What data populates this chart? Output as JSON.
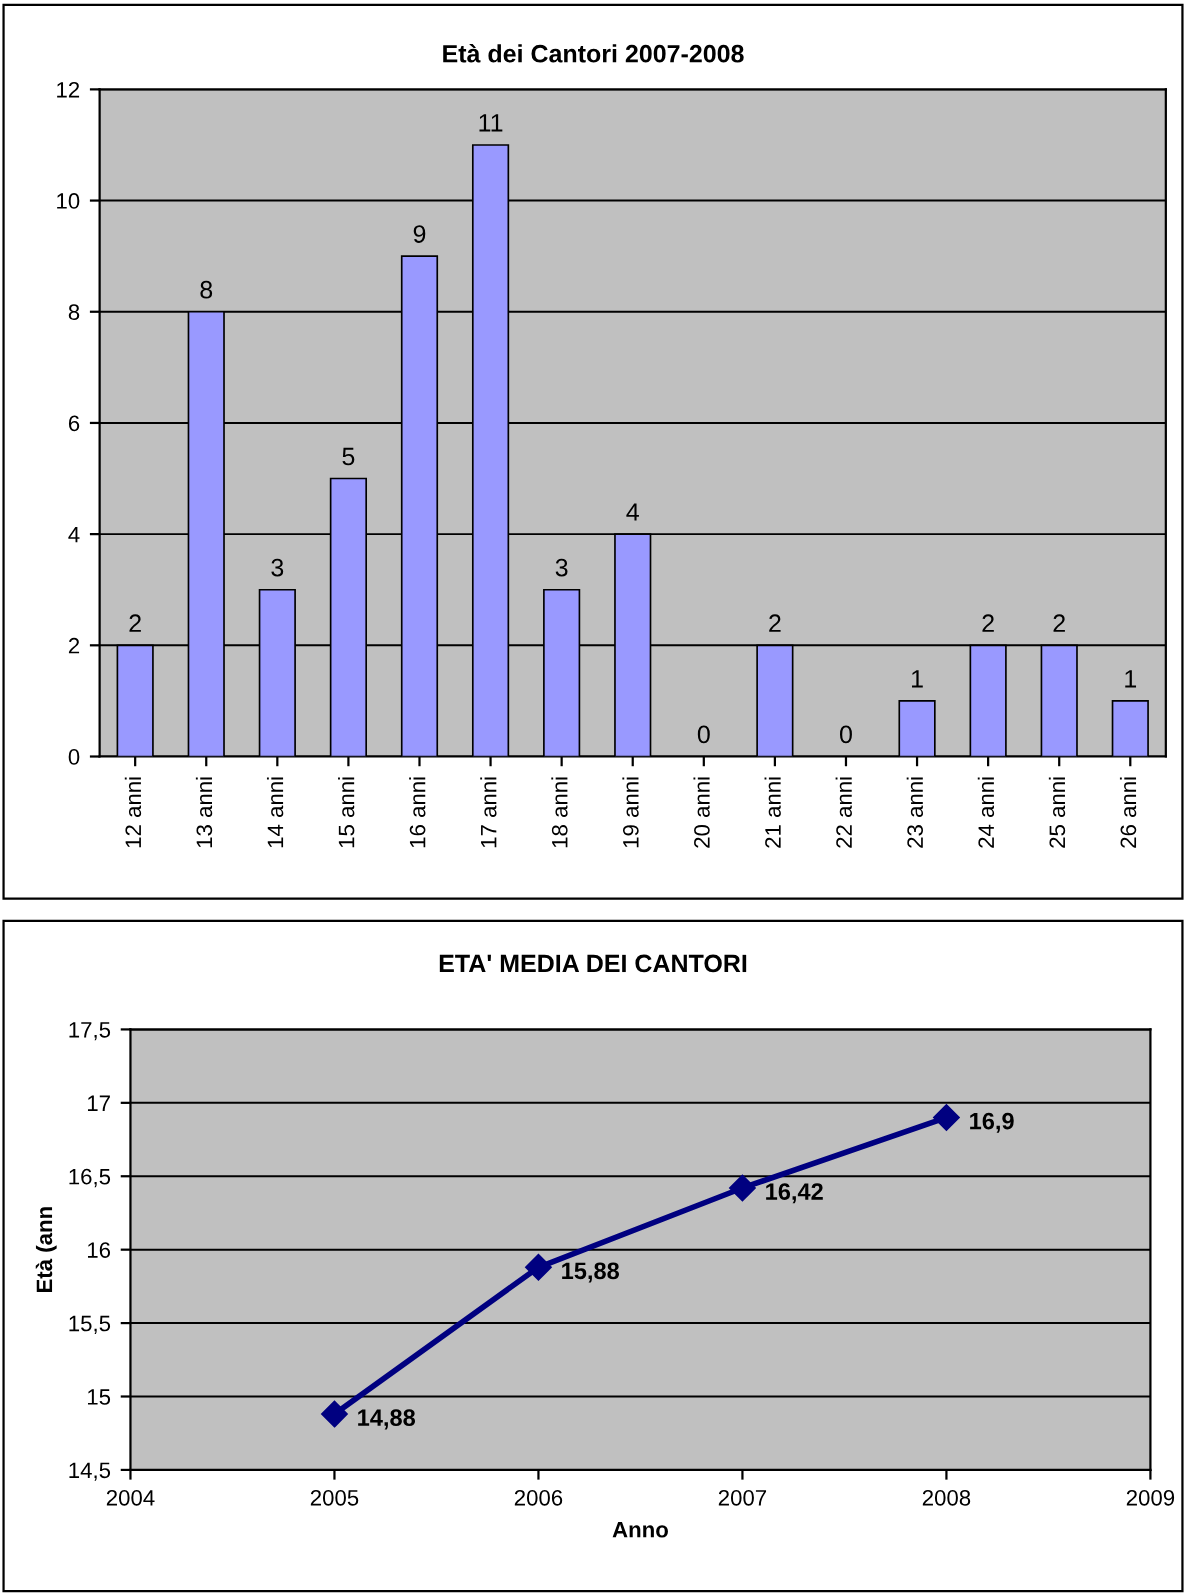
{
  "chart_data": [
    {
      "type": "bar",
      "title": "Età dei Cantori 2007-2008",
      "categories": [
        "12 anni",
        "13 anni",
        "14 anni",
        "15 anni",
        "16 anni",
        "17 anni",
        "18 anni",
        "19 anni",
        "20 anni",
        "21 anni",
        "22 anni",
        "23 anni",
        "24 anni",
        "25 anni",
        "26 anni"
      ],
      "values": [
        2,
        8,
        3,
        5,
        9,
        11,
        3,
        4,
        0,
        2,
        0,
        1,
        2,
        2,
        1
      ],
      "color": "#9999ff",
      "ylim": [
        0,
        12
      ],
      "yticks": [
        0,
        2,
        4,
        6,
        8,
        10,
        12
      ],
      "grid": "y",
      "data_labels": true
    },
    {
      "type": "line",
      "title": "ETA' MEDIA DEI CANTORI",
      "xlabel": "Anno",
      "ylabel": "Età (ann",
      "x": [
        2005,
        2006,
        2007,
        2008
      ],
      "values": [
        14.88,
        15.88,
        16.42,
        16.9
      ],
      "value_labels": [
        "14,88",
        "15,88",
        "16,42",
        "16,9"
      ],
      "color": "#000080",
      "marker": "diamond",
      "line_style": "solid",
      "xlim": [
        2004,
        2009
      ],
      "xticks": [
        2004,
        2005,
        2006,
        2007,
        2008,
        2009
      ],
      "ylim": [
        14.5,
        17.5
      ],
      "yticks": [
        {
          "value": 14.5,
          "label": "14,5"
        },
        15,
        {
          "value": 15.5,
          "label": "15,5"
        },
        16,
        {
          "value": 16.5,
          "label": "16,5"
        },
        17,
        {
          "value": 17.5,
          "label": "17,5"
        }
      ],
      "grid": "y"
    }
  ]
}
